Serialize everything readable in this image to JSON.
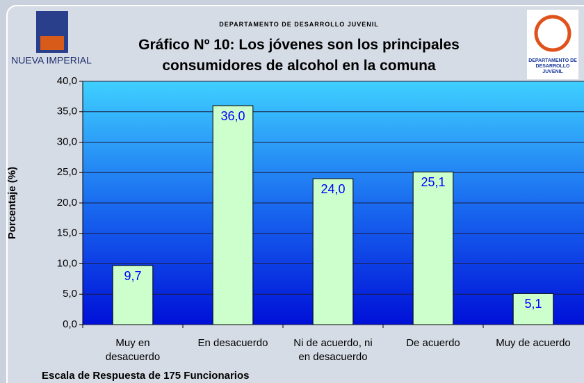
{
  "chart_data": {
    "type": "bar",
    "header": "DEPARTAMENTO DE DESARROLLO JUVENIL",
    "title": "Gráfico Nº 10: Los jóvenes son los principales consumidores de alcohol en la comuna",
    "logo_left": "NUEVA IMPERIAL",
    "logo_right": "DEPARTAMENTO DE DESARROLLO JUVENIL",
    "y_label": "Porcentaje (%)",
    "x_label": "Escala de Respuesta de 175 Funcionarios",
    "categories": [
      "Muy en desacuerdo",
      "En desacuerdo",
      "Ni de acuerdo, ni en desacuerdo",
      "De acuerdo",
      "Muy de acuerdo"
    ],
    "values": [
      9.7,
      36.0,
      24.0,
      25.1,
      5.1
    ],
    "value_labels": [
      "9,7",
      "36,0",
      "24,0",
      "25,1",
      "5,1"
    ],
    "color": "#ccffcc",
    "ylim": [
      0,
      40
    ],
    "yticks": [
      {
        "value": 0,
        "label": "0,0"
      },
      {
        "value": 5,
        "label": "5,0"
      },
      {
        "value": 10,
        "label": "10,0"
      },
      {
        "value": 15,
        "label": "15,0"
      },
      {
        "value": 20,
        "label": "20,0"
      },
      {
        "value": 25,
        "label": "25,0"
      },
      {
        "value": 30,
        "label": "30,0"
      },
      {
        "value": 35,
        "label": "35,0"
      },
      {
        "value": 40,
        "label": "40,0"
      }
    ],
    "grid": true
  }
}
